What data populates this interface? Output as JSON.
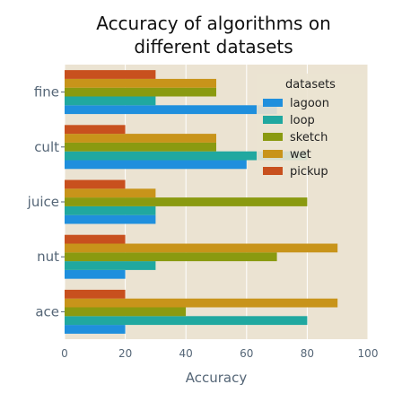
{
  "chart_data": {
    "type": "bar",
    "orientation": "horizontal",
    "title_lines": [
      "Accuracy of algorithms on",
      "different datasets"
    ],
    "xlabel": "Accuracy",
    "ylabel": "",
    "xlim": [
      0,
      100
    ],
    "xticks": [
      "0",
      "20",
      "40",
      "60",
      "80",
      "100"
    ],
    "grid": true,
    "legend_title": "datasets",
    "legend_position": "top-right",
    "categories": [
      "ace",
      "nut",
      "juice",
      "cult",
      "fine"
    ],
    "series": [
      {
        "name": "lagoon",
        "color": "#1f8fdd",
        "values": [
          20,
          20,
          30,
          60,
          70
        ]
      },
      {
        "name": "loop",
        "color": "#20a8a0",
        "values": [
          80,
          30,
          30,
          80,
          30
        ]
      },
      {
        "name": "sketch",
        "color": "#8a9a10",
        "values": [
          40,
          70,
          80,
          50,
          50
        ]
      },
      {
        "name": "wet",
        "color": "#c8941a",
        "values": [
          90,
          90,
          30,
          50,
          50
        ]
      },
      {
        "name": "pickup",
        "color": "#c8501e",
        "values": [
          20,
          20,
          20,
          20,
          30
        ]
      }
    ]
  },
  "style": {
    "plot_background": "#ebe3d2",
    "grid_color": "#ffffff"
  }
}
